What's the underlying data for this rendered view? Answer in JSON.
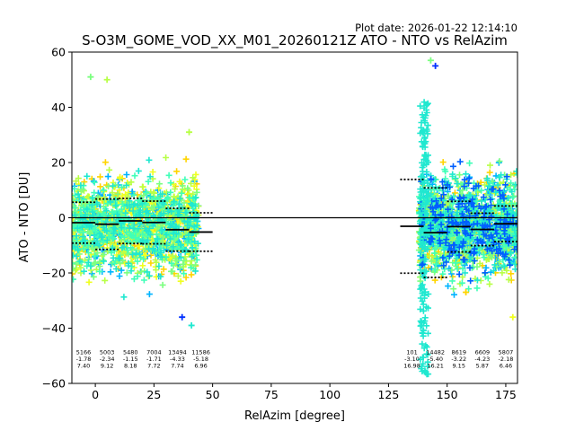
{
  "plot_date": "Plot date: 2026-01-22 12:14:10",
  "chart_data": {
    "type": "scatter",
    "title": "S-O3M_GOME_VOD_XX_M01_20260121Z ATO - NTO vs RelAzim",
    "xlabel": "RelAzim [degree]",
    "ylabel": "ATO - NTO [DU]",
    "xlim": [
      -10,
      180
    ],
    "ylim": [
      -60,
      60
    ],
    "xticks": [
      0,
      25,
      50,
      75,
      100,
      125,
      150,
      175
    ],
    "yticks": [
      -60,
      -40,
      -20,
      0,
      20,
      40,
      60
    ],
    "xtick_labels": [
      "0",
      "25",
      "50",
      "75",
      "100",
      "125",
      "150",
      "175"
    ],
    "ytick_labels": [
      "−60",
      "−40",
      "−20",
      "0",
      "20",
      "40",
      "60"
    ],
    "zero_line": 0,
    "scatter_clusters": [
      {
        "x_range": [
          -10,
          44
        ],
        "center": -3,
        "spread": 15,
        "colors": [
          "#40ffb8",
          "#20e8d0",
          "#00b4ff",
          "#b8ff48",
          "#ffd400",
          "#f0ff20",
          "#7cff80"
        ]
      },
      {
        "x_range": [
          138,
          180
        ],
        "center": -3,
        "spread": 16,
        "colors": [
          "#40ffb8",
          "#20e8d0",
          "#00b4ff",
          "#0060ff",
          "#b8ff48",
          "#ffd400",
          "#7cff80"
        ]
      }
    ],
    "outliers": [
      {
        "x": -2,
        "y": 51,
        "color": "#7cff80"
      },
      {
        "x": 5,
        "y": 50,
        "color": "#b8ff48"
      },
      {
        "x": 40,
        "y": 31,
        "color": "#b8ff48"
      },
      {
        "x": 41,
        "y": -39,
        "color": "#20e8d0"
      },
      {
        "x": 143,
        "y": 57,
        "color": "#7cff80"
      },
      {
        "x": 145,
        "y": 55,
        "color": "#0030ff"
      },
      {
        "x": 178,
        "y": -36,
        "color": "#f0ff20"
      },
      {
        "x": 37,
        "y": -36,
        "color": "#0030ff"
      },
      {
        "x": 158,
        "y": -27,
        "color": "#ffd400"
      }
    ],
    "bins": [
      {
        "x0": -10,
        "x1": 0,
        "count": "5166",
        "mean": -1.78,
        "std": 7.4,
        "mean_label": "-1.78",
        "std_label": "7.40"
      },
      {
        "x0": 0,
        "x1": 10,
        "count": "5003",
        "mean": -2.34,
        "std": 9.12,
        "mean_label": "-2.34",
        "std_label": "9.12"
      },
      {
        "x0": 10,
        "x1": 20,
        "count": "5480",
        "mean": -1.15,
        "std": 8.18,
        "mean_label": "-1.15",
        "std_label": "8.18"
      },
      {
        "x0": 20,
        "x1": 30,
        "count": "7004",
        "mean": -1.71,
        "std": 7.72,
        "mean_label": "-1.71",
        "std_label": "7.72"
      },
      {
        "x0": 30,
        "x1": 40,
        "count": "13494",
        "mean": -4.33,
        "std": 7.74,
        "mean_label": "-4.33",
        "std_label": "7.74"
      },
      {
        "x0": 40,
        "x1": 50,
        "count": "11586",
        "mean": -5.18,
        "std": 6.96,
        "mean_label": "-5.18",
        "std_label": "6.96"
      },
      {
        "x0": 130,
        "x1": 140,
        "count": "101",
        "mean": -3.1,
        "std": 16.98,
        "mean_label": "-3.10",
        "std_label": "16.98"
      },
      {
        "x0": 140,
        "x1": 150,
        "count": "14482",
        "mean": -5.4,
        "std": 16.21,
        "mean_label": "-5.40",
        "std_label": "16.21"
      },
      {
        "x0": 150,
        "x1": 160,
        "count": "8619",
        "mean": -3.22,
        "std": 9.15,
        "mean_label": "-3.22",
        "std_label": "9.15"
      },
      {
        "x0": 160,
        "x1": 170,
        "count": "6609",
        "mean": -4.23,
        "std": 5.87,
        "mean_label": "-4.23",
        "std_label": "5.87"
      },
      {
        "x0": 170,
        "x1": 180,
        "count": "5807",
        "mean": -2.18,
        "std": 6.46,
        "mean_label": "-2.18",
        "std_label": "6.46"
      }
    ],
    "stats_label_y": -50
  }
}
